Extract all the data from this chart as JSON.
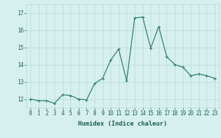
{
  "x": [
    0,
    1,
    2,
    3,
    4,
    5,
    6,
    7,
    8,
    9,
    10,
    11,
    12,
    13,
    14,
    15,
    16,
    17,
    18,
    19,
    20,
    21,
    22,
    23
  ],
  "y": [
    12.0,
    11.9,
    11.9,
    11.75,
    12.25,
    12.2,
    12.0,
    11.95,
    12.9,
    13.2,
    14.25,
    14.9,
    13.05,
    16.7,
    16.75,
    14.95,
    16.2,
    14.45,
    14.0,
    13.85,
    13.35,
    13.45,
    13.35,
    13.2
  ],
  "line_color": "#2e7d6e",
  "marker": "+",
  "marker_size": 3,
  "marker_lw": 0.8,
  "bg_color": "#d6f0ee",
  "grid_color": "#b8d8d4",
  "xlabel": "Humidex (Indice chaleur)",
  "ylabel": "",
  "xlim": [
    -0.5,
    23.5
  ],
  "ylim": [
    11.5,
    17.5
  ],
  "yticks": [
    12,
    13,
    14,
    15,
    16,
    17
  ],
  "xticks": [
    0,
    1,
    2,
    3,
    4,
    5,
    6,
    7,
    8,
    9,
    10,
    11,
    12,
    13,
    14,
    15,
    16,
    17,
    18,
    19,
    20,
    21,
    22,
    23
  ],
  "tick_fontsize": 5.5,
  "xlabel_fontsize": 6.5,
  "line_width": 0.9
}
